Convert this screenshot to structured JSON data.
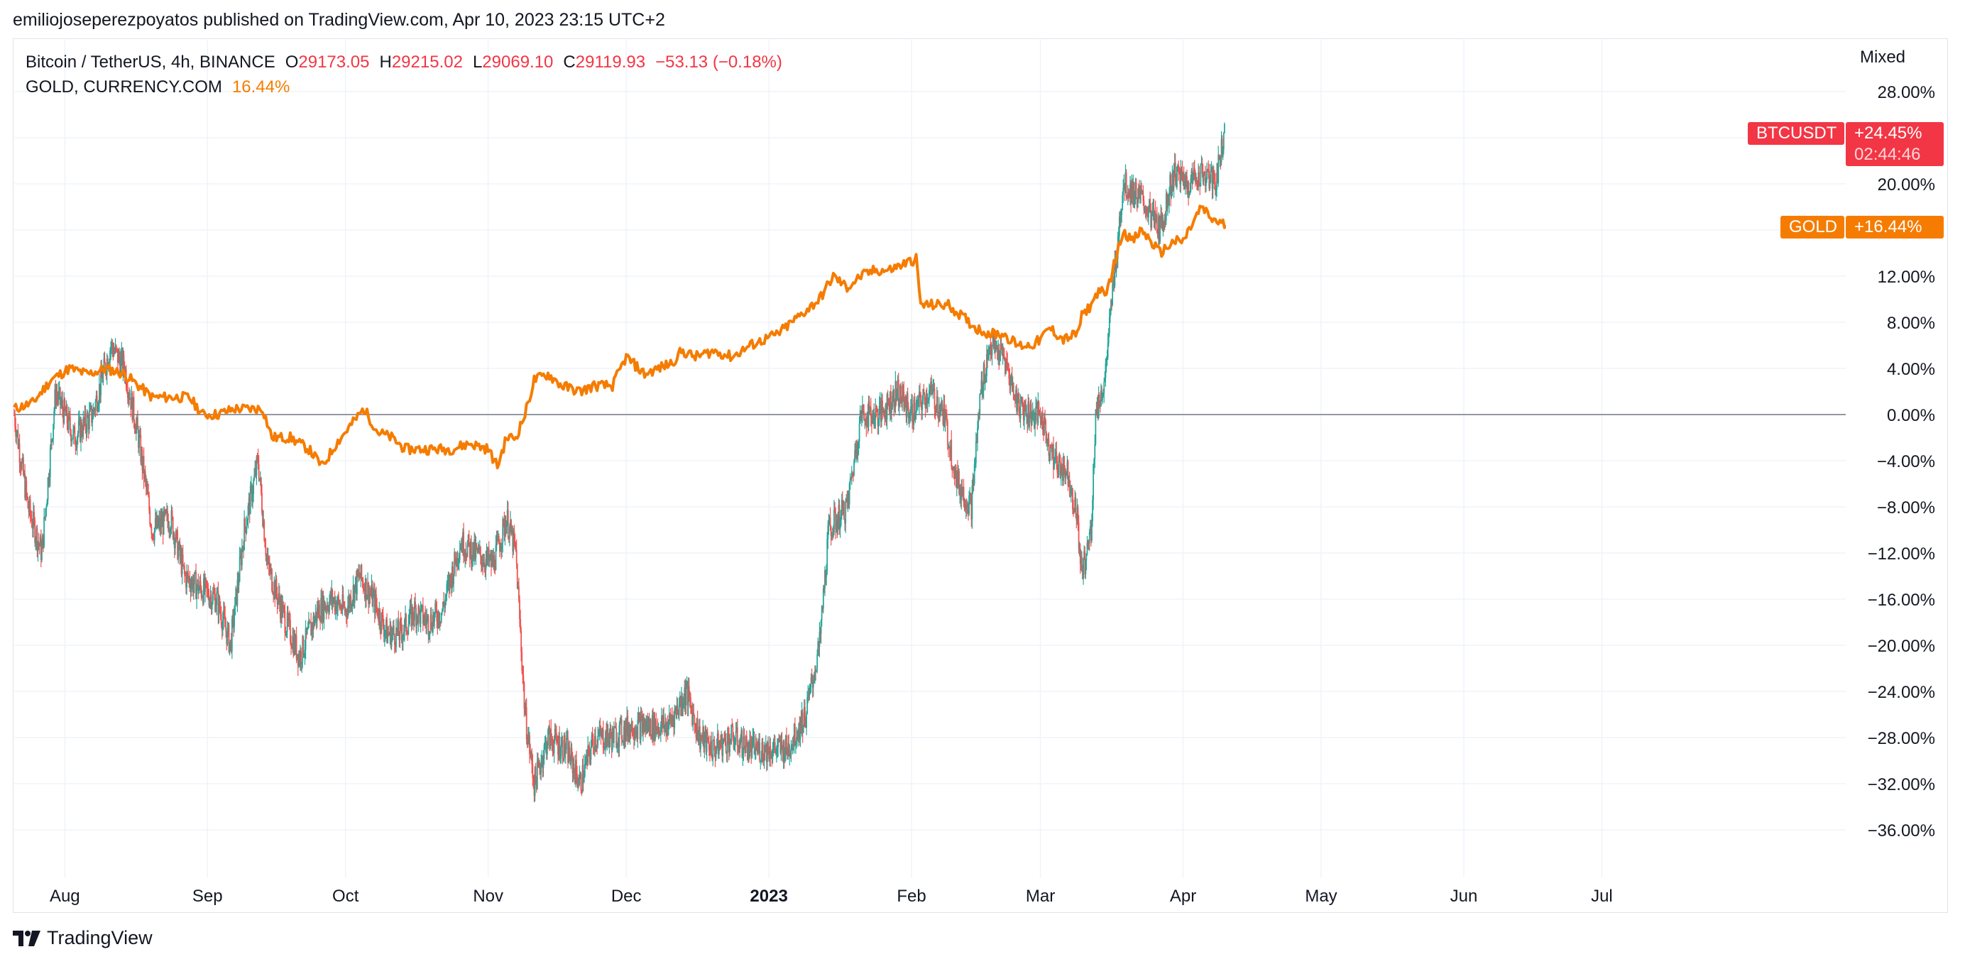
{
  "header": {
    "publisher_line": "emiliojoseperezpoyatos published on TradingView.com, Apr 10, 2023 23:15 UTC+2"
  },
  "legend": {
    "main_symbol": "Bitcoin / TetherUS, 4h, BINANCE",
    "open_label": "O",
    "open_value": "29173.05",
    "high_label": "H",
    "high_value": "29215.02",
    "low_label": "L",
    "low_value": "29069.10",
    "close_label": "C",
    "close_value": "29119.93",
    "change": "−53.13 (−0.18%)",
    "compare_symbol": "GOLD, CURRENCY.COM",
    "compare_value": "16.44%"
  },
  "scale_mode": "Mixed",
  "badges": {
    "btc_name": "BTCUSDT",
    "btc_value": "+24.45%",
    "btc_countdown": "02:44:46",
    "gold_name": "GOLD",
    "gold_value": "+16.44%"
  },
  "colors": {
    "up": "#26a69a",
    "down": "#ef5350",
    "gold_line": "#f57c00",
    "badge_red": "#f23645",
    "badge_orange": "#f57c00",
    "grid": "#f0f3fa",
    "zero_line": "#9598a1"
  },
  "branding": {
    "logo_text": "TradingView"
  },
  "chart_data": {
    "type": "line",
    "title": "Bitcoin / TetherUS, 4h, BINANCE",
    "x_unit": "date",
    "y_unit": "percent change",
    "ylim": [
      -40,
      30
    ],
    "y_ticks": [
      28,
      24,
      20,
      16,
      12,
      8,
      4,
      0,
      -4,
      -8,
      -12,
      -16,
      -20,
      -24,
      -28,
      -32,
      -36
    ],
    "y_tick_labels": [
      "28.00%",
      "",
      "20.00%",
      "",
      "12.00%",
      "8.00%",
      "4.00%",
      "0.00%",
      "−4.00%",
      "−8.00%",
      "−12.00%",
      "−16.00%",
      "−20.00%",
      "−24.00%",
      "−28.00%",
      "−32.00%",
      "−36.00%"
    ],
    "x_ticks": [
      {
        "label": "Aug",
        "date": "2022-08-01",
        "bold": false
      },
      {
        "label": "Sep",
        "date": "2022-09-01",
        "bold": false
      },
      {
        "label": "Oct",
        "date": "2022-10-01",
        "bold": false
      },
      {
        "label": "Nov",
        "date": "2022-11-01",
        "bold": false
      },
      {
        "label": "Dec",
        "date": "2022-12-01",
        "bold": false
      },
      {
        "label": "2023",
        "date": "2023-01-01",
        "bold": true
      },
      {
        "label": "Feb",
        "date": "2023-02-01",
        "bold": false
      },
      {
        "label": "Mar",
        "date": "2023-03-01",
        "bold": false
      },
      {
        "label": "Apr",
        "date": "2023-04-01",
        "bold": false
      },
      {
        "label": "May",
        "date": "2023-05-01",
        "bold": false
      },
      {
        "label": "Jun",
        "date": "2023-06-01",
        "bold": false
      },
      {
        "label": "Jul",
        "date": "2023-07-01",
        "bold": false
      }
    ],
    "x_range": [
      "2022-07-21",
      "2023-08-23"
    ],
    "grid": true,
    "series": [
      {
        "name": "BTCUSDT",
        "style": "candles",
        "points": [
          [
            "2022-07-21",
            0
          ],
          [
            "2022-07-24",
            -8
          ],
          [
            "2022-07-27",
            -12
          ],
          [
            "2022-07-30",
            2
          ],
          [
            "2022-08-03",
            -2
          ],
          [
            "2022-08-07",
            0
          ],
          [
            "2022-08-11",
            6
          ],
          [
            "2022-08-14",
            4
          ],
          [
            "2022-08-17",
            -2
          ],
          [
            "2022-08-20",
            -10
          ],
          [
            "2022-08-24",
            -9
          ],
          [
            "2022-08-27",
            -14
          ],
          [
            "2022-08-30",
            -15
          ],
          [
            "2022-09-03",
            -16
          ],
          [
            "2022-09-06",
            -20
          ],
          [
            "2022-09-09",
            -10
          ],
          [
            "2022-09-12",
            -4
          ],
          [
            "2022-09-14",
            -13
          ],
          [
            "2022-09-18",
            -18
          ],
          [
            "2022-09-21",
            -21
          ],
          [
            "2022-09-25",
            -17
          ],
          [
            "2022-09-28",
            -16
          ],
          [
            "2022-10-01",
            -17
          ],
          [
            "2022-10-04",
            -14
          ],
          [
            "2022-10-07",
            -16
          ],
          [
            "2022-10-10",
            -19
          ],
          [
            "2022-10-13",
            -19
          ],
          [
            "2022-10-16",
            -17
          ],
          [
            "2022-10-19",
            -18
          ],
          [
            "2022-10-22",
            -17
          ],
          [
            "2022-10-26",
            -11
          ],
          [
            "2022-10-29",
            -12
          ],
          [
            "2022-11-02",
            -13
          ],
          [
            "2022-11-05",
            -9
          ],
          [
            "2022-11-07",
            -12
          ],
          [
            "2022-11-09",
            -26
          ],
          [
            "2022-11-11",
            -32
          ],
          [
            "2022-11-14",
            -28
          ],
          [
            "2022-11-18",
            -29
          ],
          [
            "2022-11-21",
            -32
          ],
          [
            "2022-11-24",
            -28
          ],
          [
            "2022-11-28",
            -28
          ],
          [
            "2022-12-02",
            -27
          ],
          [
            "2022-12-06",
            -27
          ],
          [
            "2022-12-10",
            -27
          ],
          [
            "2022-12-14",
            -24
          ],
          [
            "2022-12-17",
            -28
          ],
          [
            "2022-12-20",
            -29
          ],
          [
            "2022-12-24",
            -28
          ],
          [
            "2022-12-28",
            -29
          ],
          [
            "2023-01-01",
            -29
          ],
          [
            "2023-01-05",
            -29
          ],
          [
            "2023-01-09",
            -26
          ],
          [
            "2023-01-12",
            -20
          ],
          [
            "2023-01-14",
            -10
          ],
          [
            "2023-01-18",
            -8
          ],
          [
            "2023-01-21",
            0
          ],
          [
            "2023-01-25",
            0
          ],
          [
            "2023-01-29",
            2
          ],
          [
            "2023-02-01",
            0
          ],
          [
            "2023-02-05",
            2
          ],
          [
            "2023-02-08",
            0
          ],
          [
            "2023-02-11",
            -6
          ],
          [
            "2023-02-14",
            -8
          ],
          [
            "2023-02-16",
            2
          ],
          [
            "2023-02-18",
            6
          ],
          [
            "2023-02-21",
            5
          ],
          [
            "2023-02-24",
            1
          ],
          [
            "2023-02-27",
            0
          ],
          [
            "2023-03-01",
            0
          ],
          [
            "2023-03-04",
            -4
          ],
          [
            "2023-03-07",
            -5
          ],
          [
            "2023-03-09",
            -9
          ],
          [
            "2023-03-10",
            -14
          ],
          [
            "2023-03-12",
            -10
          ],
          [
            "2023-03-13",
            0
          ],
          [
            "2023-03-15",
            3
          ],
          [
            "2023-03-17",
            12
          ],
          [
            "2023-03-19",
            20
          ],
          [
            "2023-03-22",
            19
          ],
          [
            "2023-03-24",
            18
          ],
          [
            "2023-03-27",
            16
          ],
          [
            "2023-03-30",
            21
          ],
          [
            "2023-04-02",
            20
          ],
          [
            "2023-04-05",
            21
          ],
          [
            "2023-04-08",
            20
          ],
          [
            "2023-04-10",
            24.45
          ]
        ]
      },
      {
        "name": "GOLD",
        "style": "line",
        "points": [
          [
            "2022-07-21",
            0.5
          ],
          [
            "2022-07-25",
            1
          ],
          [
            "2022-07-29",
            3
          ],
          [
            "2022-08-02",
            4
          ],
          [
            "2022-08-06",
            3.5
          ],
          [
            "2022-08-10",
            4
          ],
          [
            "2022-08-14",
            3.5
          ],
          [
            "2022-08-17",
            2.5
          ],
          [
            "2022-08-20",
            1.5
          ],
          [
            "2022-08-24",
            1.5
          ],
          [
            "2022-08-28",
            1.5
          ],
          [
            "2022-08-31",
            0
          ],
          [
            "2022-09-03",
            0
          ],
          [
            "2022-09-07",
            0.5
          ],
          [
            "2022-09-10",
            0.5
          ],
          [
            "2022-09-13",
            0.5
          ],
          [
            "2022-09-15",
            -2
          ],
          [
            "2022-09-19",
            -2
          ],
          [
            "2022-09-23",
            -3
          ],
          [
            "2022-09-26",
            -4.5
          ],
          [
            "2022-09-29",
            -2.5
          ],
          [
            "2022-10-02",
            -1
          ],
          [
            "2022-10-05",
            0.5
          ],
          [
            "2022-10-08",
            -1.5
          ],
          [
            "2022-10-11",
            -2
          ],
          [
            "2022-10-14",
            -3
          ],
          [
            "2022-10-18",
            -3
          ],
          [
            "2022-10-21",
            -3
          ],
          [
            "2022-10-24",
            -3
          ],
          [
            "2022-10-28",
            -2.5
          ],
          [
            "2022-11-01",
            -3
          ],
          [
            "2022-11-03",
            -4.5
          ],
          [
            "2022-11-05",
            -2
          ],
          [
            "2022-11-07",
            -2
          ],
          [
            "2022-11-09",
            0
          ],
          [
            "2022-11-11",
            3
          ],
          [
            "2022-11-14",
            3.5
          ],
          [
            "2022-11-17",
            2.5
          ],
          [
            "2022-11-21",
            2
          ],
          [
            "2022-11-24",
            2.5
          ],
          [
            "2022-11-28",
            2.5
          ],
          [
            "2022-12-01",
            5
          ],
          [
            "2022-12-05",
            3.5
          ],
          [
            "2022-12-08",
            4
          ],
          [
            "2022-12-11",
            4.5
          ],
          [
            "2022-12-13",
            5.5
          ],
          [
            "2022-12-16",
            5
          ],
          [
            "2022-12-20",
            5.5
          ],
          [
            "2022-12-24",
            5
          ],
          [
            "2022-12-28",
            6
          ],
          [
            "2022-12-31",
            6.5
          ],
          [
            "2023-01-03",
            7
          ],
          [
            "2023-01-06",
            8
          ],
          [
            "2023-01-09",
            9
          ],
          [
            "2023-01-12",
            10
          ],
          [
            "2023-01-15",
            12
          ],
          [
            "2023-01-18",
            11
          ],
          [
            "2023-01-21",
            12
          ],
          [
            "2023-01-24",
            12.5
          ],
          [
            "2023-01-27",
            12.5
          ],
          [
            "2023-01-30",
            13
          ],
          [
            "2023-02-02",
            13.5
          ],
          [
            "2023-02-03",
            9.5
          ],
          [
            "2023-02-06",
            9.5
          ],
          [
            "2023-02-09",
            9.5
          ],
          [
            "2023-02-12",
            8.5
          ],
          [
            "2023-02-15",
            7.5
          ],
          [
            "2023-02-18",
            7
          ],
          [
            "2023-02-21",
            7
          ],
          [
            "2023-02-24",
            6
          ],
          [
            "2023-02-27",
            6
          ],
          [
            "2023-03-01",
            6.5
          ],
          [
            "2023-03-03",
            7.5
          ],
          [
            "2023-03-06",
            6.5
          ],
          [
            "2023-03-09",
            7
          ],
          [
            "2023-03-10",
            8.5
          ],
          [
            "2023-03-12",
            9.5
          ],
          [
            "2023-03-14",
            11
          ],
          [
            "2023-03-15",
            10
          ],
          [
            "2023-03-17",
            13
          ],
          [
            "2023-03-19",
            16
          ],
          [
            "2023-03-21",
            15
          ],
          [
            "2023-03-23",
            16
          ],
          [
            "2023-03-24",
            15.5
          ],
          [
            "2023-03-27",
            14
          ],
          [
            "2023-03-30",
            15
          ],
          [
            "2023-04-01",
            15
          ],
          [
            "2023-04-03",
            16.5
          ],
          [
            "2023-04-05",
            18
          ],
          [
            "2023-04-07",
            17
          ],
          [
            "2023-04-10",
            16.44
          ]
        ]
      }
    ]
  }
}
